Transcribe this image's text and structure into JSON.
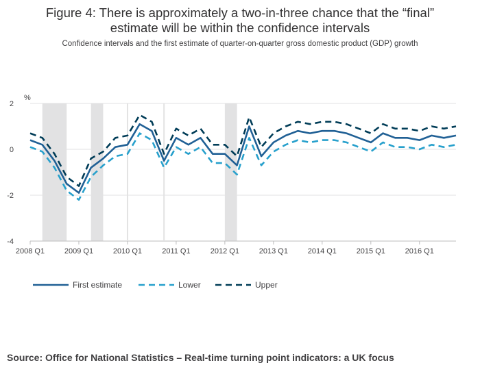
{
  "title_line1": "Figure 4: There is approximately a two-in-three chance that the “final”",
  "title_line2": "estimate will be within the confidence intervals",
  "subtitle": "Confidence intervals and the first estimate of quarter-on-quarter gross domestic product (GDP) growth",
  "source": "Source: Office for National Statistics – Real-time turning point indicators: a UK focus",
  "chart_data": {
    "type": "line",
    "ylabel": "%",
    "ylim": [
      -4,
      2
    ],
    "yticks": [
      2,
      0,
      -2,
      -4
    ],
    "grid": true,
    "legend_position": "bottom-left",
    "x_tick_labels": [
      "2008 Q1",
      "2009 Q1",
      "2010 Q1",
      "2011 Q1",
      "2012 Q1",
      "2013 Q1",
      "2014 Q1",
      "2015 Q1",
      "2016 Q1"
    ],
    "x_tick_index": [
      0,
      4,
      8,
      12,
      16,
      20,
      24,
      28,
      32
    ],
    "recession_bands": [
      [
        1,
        3
      ],
      [
        5,
        6
      ],
      [
        16,
        17
      ]
    ],
    "vertical_lines": [
      8,
      11
    ],
    "x": [
      "2008 Q1",
      "2008 Q2",
      "2008 Q3",
      "2008 Q4",
      "2009 Q1",
      "2009 Q2",
      "2009 Q3",
      "2009 Q4",
      "2010 Q1",
      "2010 Q2",
      "2010 Q3",
      "2010 Q4",
      "2011 Q1",
      "2011 Q2",
      "2011 Q3",
      "2011 Q4",
      "2012 Q1",
      "2012 Q2",
      "2012 Q3",
      "2012 Q4",
      "2013 Q1",
      "2013 Q2",
      "2013 Q3",
      "2013 Q4",
      "2014 Q1",
      "2014 Q2",
      "2014 Q3",
      "2014 Q4",
      "2015 Q1",
      "2015 Q2",
      "2015 Q3",
      "2015 Q4",
      "2016 Q1",
      "2016 Q2",
      "2016 Q3",
      "2016 Q4"
    ],
    "series": [
      {
        "name": "First estimate",
        "color": "#206095",
        "dash": "solid",
        "values": [
          0.4,
          0.2,
          -0.5,
          -1.5,
          -1.9,
          -0.8,
          -0.4,
          0.1,
          0.2,
          1.1,
          0.8,
          -0.5,
          0.5,
          0.2,
          0.5,
          -0.2,
          -0.2,
          -0.7,
          1.0,
          -0.3,
          0.3,
          0.6,
          0.8,
          0.7,
          0.8,
          0.8,
          0.7,
          0.5,
          0.3,
          0.7,
          0.5,
          0.5,
          0.4,
          0.6,
          0.5,
          0.6
        ]
      },
      {
        "name": "Lower",
        "color": "#27a0cc",
        "dash": "dashed",
        "values": [
          0.1,
          -0.1,
          -0.8,
          -1.8,
          -2.2,
          -1.2,
          -0.7,
          -0.3,
          -0.2,
          0.7,
          0.4,
          -0.8,
          0.1,
          -0.2,
          0.1,
          -0.6,
          -0.6,
          -1.1,
          0.5,
          -0.7,
          -0.1,
          0.2,
          0.4,
          0.3,
          0.4,
          0.4,
          0.3,
          0.1,
          -0.1,
          0.3,
          0.1,
          0.1,
          0.0,
          0.2,
          0.1,
          0.2
        ]
      },
      {
        "name": "Upper",
        "color": "#003c57",
        "dash": "dashed",
        "values": [
          0.7,
          0.5,
          -0.2,
          -1.2,
          -1.6,
          -0.4,
          -0.1,
          0.5,
          0.6,
          1.5,
          1.2,
          -0.2,
          0.9,
          0.6,
          0.9,
          0.2,
          0.2,
          -0.3,
          1.4,
          0.1,
          0.7,
          1.0,
          1.2,
          1.1,
          1.2,
          1.2,
          1.1,
          0.9,
          0.7,
          1.1,
          0.9,
          0.9,
          0.8,
          1.0,
          0.9,
          1.0
        ]
      }
    ]
  }
}
